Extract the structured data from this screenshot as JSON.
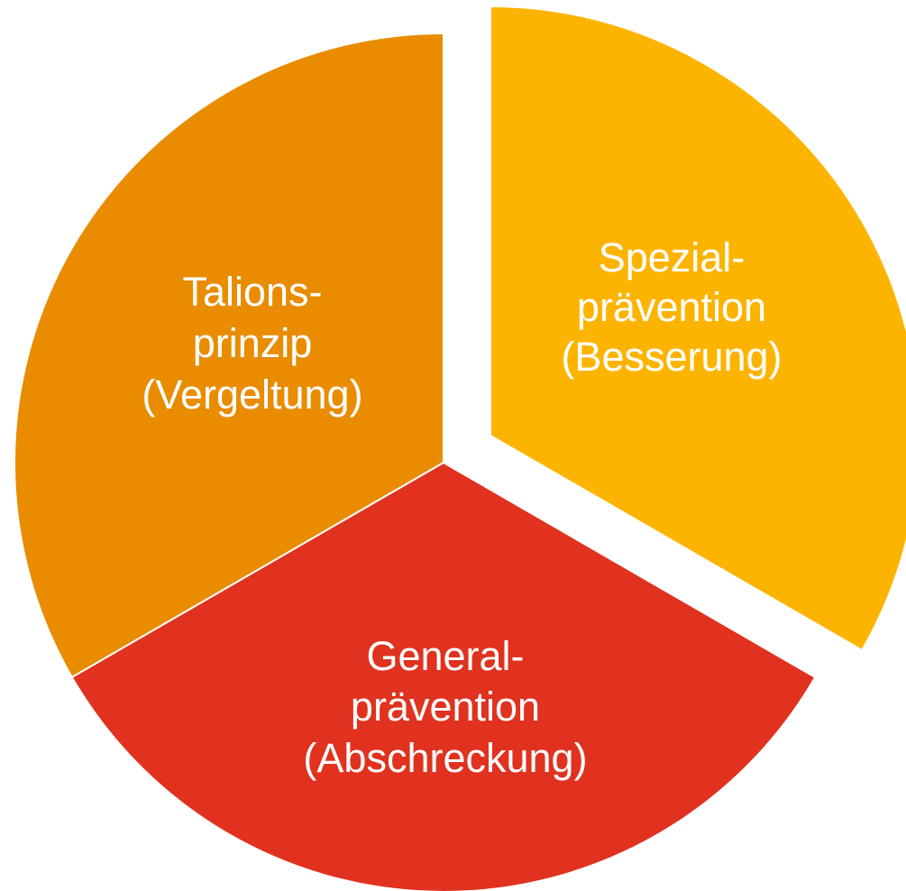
{
  "nodes": [
    {
      "label": [
        "Talions-",
        "prinzip",
        "(Vergeltung)"
      ]
    },
    {
      "label": [
        "Spezial-",
        "prävention",
        "(Besserung)"
      ]
    },
    {
      "label": [
        "General-",
        "prävention",
        "(Abschreckung)"
      ]
    }
  ]
}
